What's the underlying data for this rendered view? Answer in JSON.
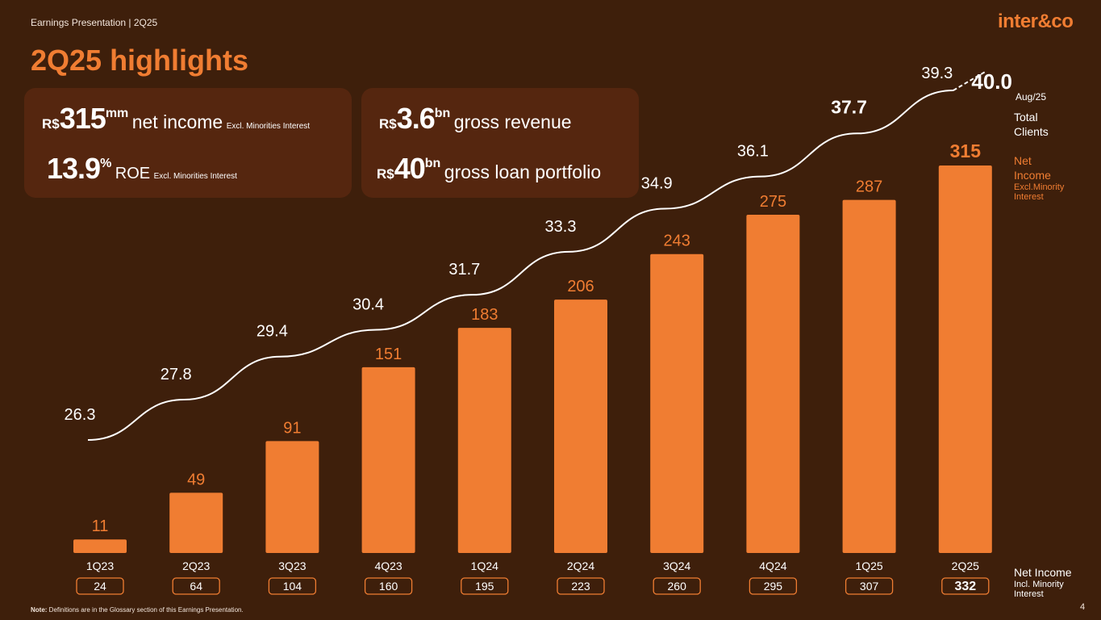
{
  "header": {
    "subtitle": "Earnings Presentation | 2Q25",
    "logo": "inter&co",
    "page_number": "4"
  },
  "title": "2Q25 highlights",
  "kpis": {
    "net_income": {
      "currency": "R$",
      "value": "315",
      "unit": "mm",
      "label": "net income",
      "note": "Excl. Minorities Interest"
    },
    "roe": {
      "value": "13.9",
      "unit": "%",
      "label": "ROE",
      "note": "Excl. Minorities Interest"
    },
    "gross_revenue": {
      "currency": "R$",
      "value": "3.6",
      "unit": "bn",
      "label": "gross revenue"
    },
    "loan_portfolio": {
      "currency": "R$",
      "value": "40",
      "unit": "bn",
      "label": "gross loan portfolio"
    }
  },
  "legend": {
    "clients_label": "Total Clients",
    "clients_aug_label": "Aug/25",
    "net_income_label": "Net Income",
    "net_income_sub": "Excl.Minority Interest",
    "net_income_incl_label": "Net Income",
    "net_income_incl_sub": "Incl. Minority Interest"
  },
  "footnote": {
    "bold": "Note:",
    "text": " Definitions are in the Glossary section of this Earnings Presentation."
  },
  "colors": {
    "background": "#3e1f0b",
    "bar": "#f07d32",
    "card": "#55260f",
    "line": "#ffffff"
  },
  "chart_data": {
    "type": "bar",
    "categories": [
      "1Q23",
      "2Q23",
      "3Q23",
      "4Q23",
      "1Q24",
      "2Q24",
      "3Q24",
      "4Q24",
      "1Q25",
      "2Q25"
    ],
    "series": [
      {
        "name": "Net Income Excl.Minority Interest",
        "values": [
          11,
          49,
          91,
          151,
          183,
          206,
          243,
          275,
          287,
          315
        ]
      },
      {
        "name": "Total Clients",
        "values": [
          26.3,
          27.8,
          29.4,
          30.4,
          31.7,
          33.3,
          34.9,
          36.1,
          37.7,
          39.3
        ]
      },
      {
        "name": "Net Income Incl. Minority Interest",
        "values": [
          24,
          64,
          104,
          160,
          195,
          223,
          260,
          295,
          307,
          332
        ]
      }
    ],
    "bar_labels": [
      "11",
      "49",
      "91",
      "151",
      "183",
      "206",
      "243",
      "275",
      "287",
      "315"
    ],
    "line_labels": [
      "26.3",
      "27.8",
      "29.4",
      "30.4",
      "31.7",
      "33.3",
      "34.9",
      "36.1",
      "37.7",
      "39.3"
    ],
    "incl_labels": [
      "24",
      "64",
      "104",
      "160",
      "195",
      "223",
      "260",
      "295",
      "307",
      "332"
    ],
    "projection": {
      "label": "Aug/25",
      "value": 40.0,
      "value_label": "40.0"
    }
  }
}
